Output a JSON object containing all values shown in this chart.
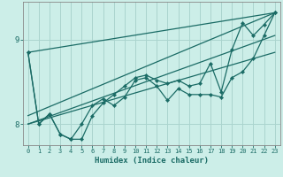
{
  "xlabel": "Humidex (Indice chaleur)",
  "bg_color": "#cceee8",
  "grid_color": "#aad4ce",
  "line_color": "#1a6b65",
  "xlim": [
    -0.5,
    23.5
  ],
  "ylim": [
    7.75,
    9.45
  ],
  "yticks": [
    8,
    9
  ],
  "xticks": [
    0,
    1,
    2,
    3,
    4,
    5,
    6,
    7,
    8,
    9,
    10,
    11,
    12,
    13,
    14,
    15,
    16,
    17,
    18,
    19,
    20,
    21,
    22,
    23
  ],
  "series_jagged": [
    8.85,
    8.0,
    8.12,
    7.88,
    7.82,
    8.0,
    8.22,
    8.3,
    8.22,
    8.32,
    8.52,
    8.55,
    8.45,
    8.28,
    8.42,
    8.35,
    8.35,
    8.35,
    8.32,
    8.55,
    8.62,
    8.78,
    9.05,
    9.32
  ],
  "series_lines": [
    [
      [
        0,
        8.85
      ],
      [
        23,
        9.32
      ]
    ],
    [
      [
        0,
        8.1
      ],
      [
        23,
        9.32
      ]
    ],
    [
      [
        0,
        8.0
      ],
      [
        23,
        8.85
      ]
    ],
    [
      [
        0,
        8.0
      ],
      [
        23,
        9.05
      ]
    ]
  ],
  "series2": [
    8.85,
    8.0,
    8.12,
    7.88,
    7.82,
    7.82,
    8.1,
    8.25,
    8.35,
    8.45,
    8.55,
    8.58,
    8.52,
    8.48,
    8.52,
    8.45,
    8.48,
    8.72,
    8.38,
    8.88,
    9.2,
    9.05,
    9.18,
    9.32
  ]
}
